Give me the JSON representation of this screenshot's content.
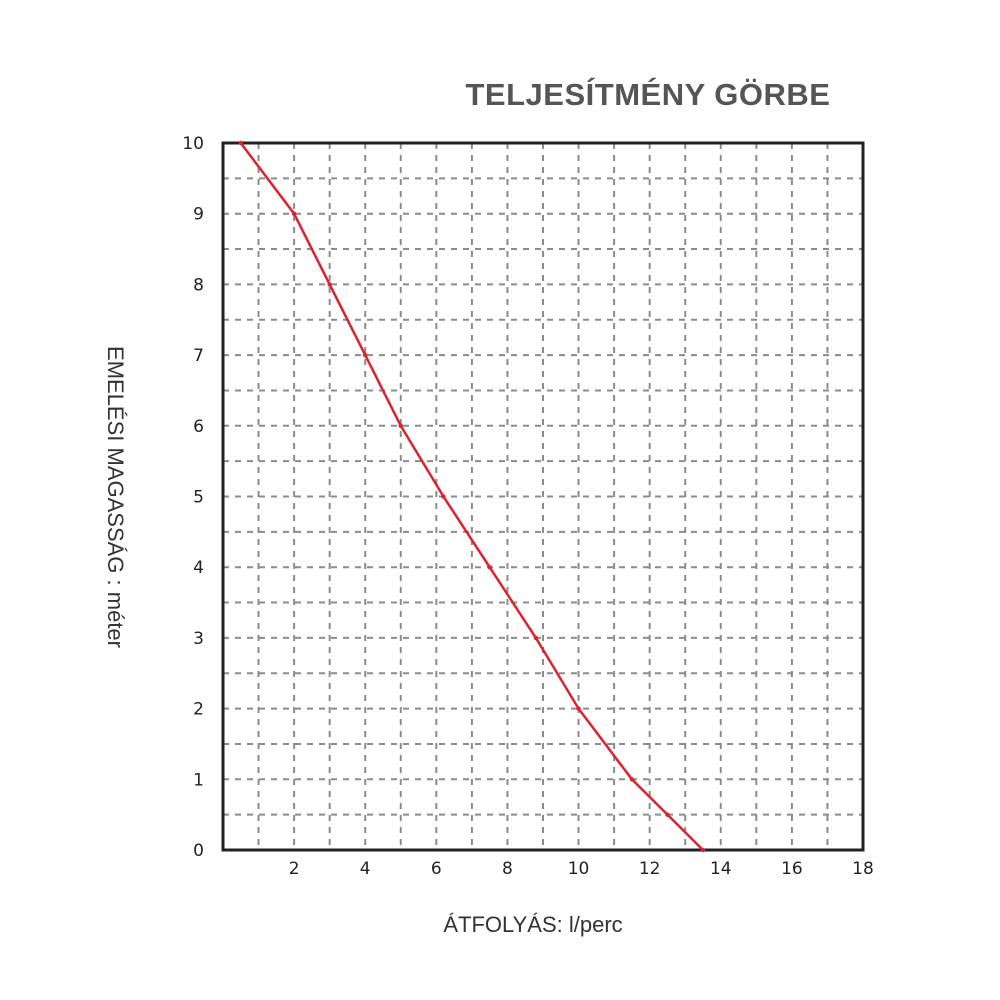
{
  "chart_data": {
    "type": "line",
    "title": "TELJESÍTMÉNY GÖRBE",
    "xlabel": "ÁTFOLYÁS: l/perc",
    "ylabel": "EMELÉSI MAGASSÁG : méter",
    "xlim": [
      0,
      18
    ],
    "ylim": [
      0,
      10
    ],
    "x_ticks": [
      2,
      4,
      6,
      8,
      10,
      12,
      14,
      16,
      18
    ],
    "y_ticks": [
      0,
      1,
      2,
      3,
      4,
      5,
      6,
      7,
      8,
      9,
      10
    ],
    "grid": true,
    "series": [
      {
        "color": "#e0202a",
        "x": [
          0.5,
          2.0,
          3.0,
          4.0,
          5.0,
          6.2,
          7.5,
          8.8,
          10.0,
          11.5,
          12.5,
          13.5
        ],
        "y": [
          10,
          9.0,
          8.0,
          7.0,
          6.0,
          5.0,
          4.0,
          3.0,
          2.0,
          1.0,
          0.5,
          0
        ]
      }
    ]
  }
}
